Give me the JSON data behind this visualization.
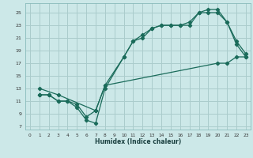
{
  "xlabel": "Humidex (Indice chaleur)",
  "bg_color": "#cce8e8",
  "grid_color": "#aacccc",
  "line_color": "#1a6b5a",
  "xlim": [
    -0.5,
    23.5
  ],
  "ylim": [
    6.5,
    26.5
  ],
  "xticks": [
    0,
    1,
    2,
    3,
    4,
    5,
    6,
    7,
    8,
    9,
    10,
    11,
    12,
    13,
    14,
    15,
    16,
    17,
    18,
    19,
    20,
    21,
    22,
    23
  ],
  "yticks": [
    7,
    9,
    11,
    13,
    15,
    17,
    19,
    21,
    23,
    25
  ],
  "line1_x": [
    1,
    2,
    3,
    4,
    5,
    6,
    7,
    8,
    10,
    11,
    12,
    13,
    14,
    15,
    16,
    17,
    18,
    19,
    20,
    21,
    22,
    23
  ],
  "line1_y": [
    12,
    12,
    11,
    11,
    10,
    8,
    7.5,
    13,
    18,
    20.5,
    21,
    22.5,
    23,
    23,
    23,
    23,
    25,
    25,
    25,
    23.5,
    20,
    18
  ],
  "line2_x": [
    1,
    2,
    3,
    4,
    5,
    6,
    7,
    8,
    10,
    11,
    12,
    13,
    14,
    15,
    16,
    17,
    18,
    19,
    20,
    21,
    22,
    23
  ],
  "line2_y": [
    12,
    12,
    11,
    11,
    10.5,
    8.5,
    9.5,
    13.5,
    18,
    20.5,
    21.5,
    22.5,
    23,
    23,
    23,
    23.5,
    25,
    25.5,
    25.5,
    23.5,
    20.5,
    18.5
  ],
  "line3_x": [
    1,
    3,
    7,
    8,
    20,
    21,
    22,
    23
  ],
  "line3_y": [
    13,
    12,
    9.5,
    13.5,
    17,
    17,
    18,
    18
  ]
}
